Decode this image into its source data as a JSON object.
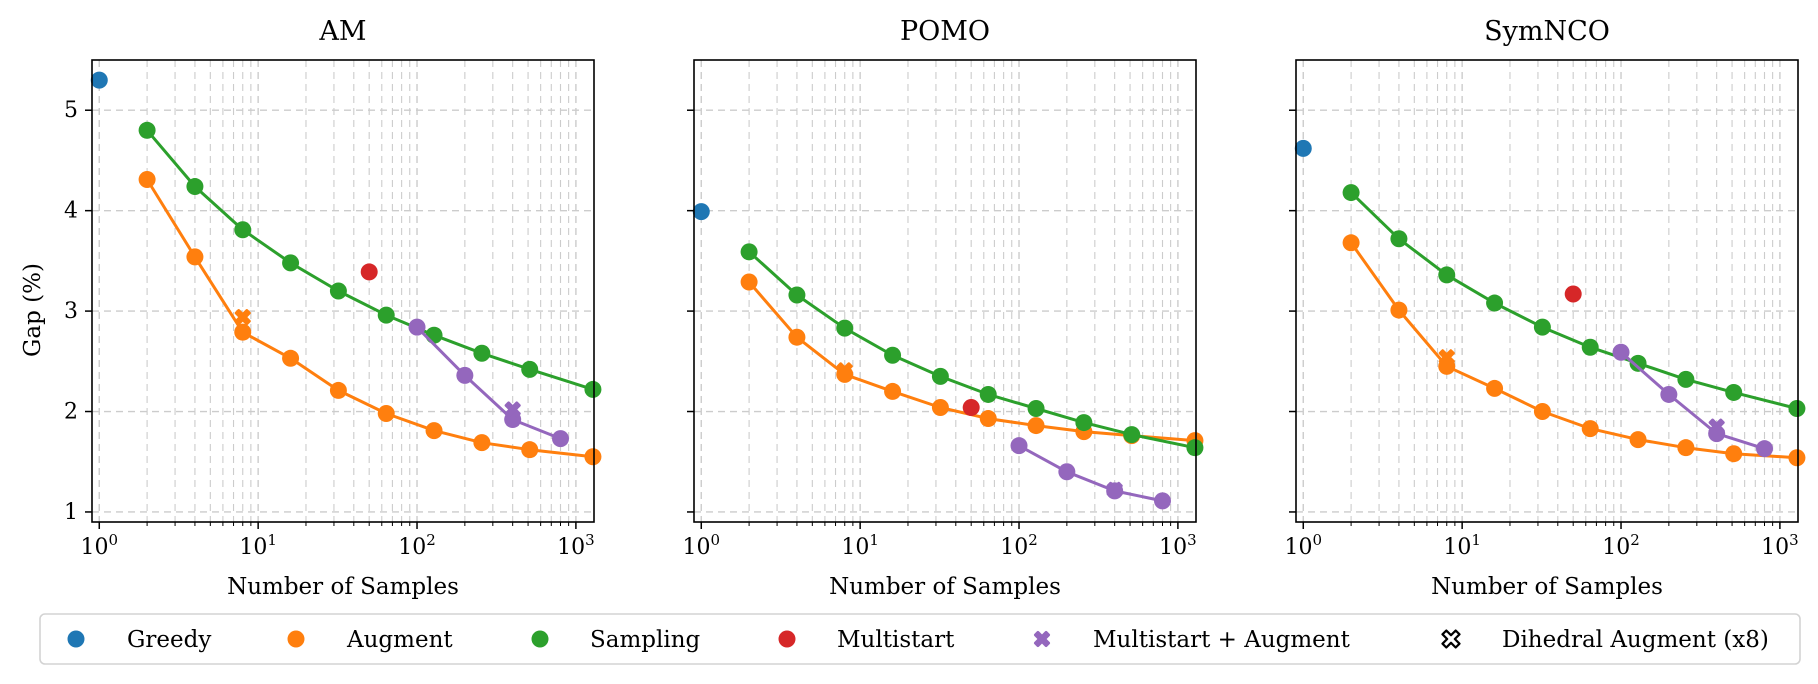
{
  "ylabel": "Gap (%)",
  "legend": {
    "placement": "bottom",
    "items": [
      {
        "label": "Greedy",
        "color": "#1f77b4",
        "marker": "circle"
      },
      {
        "label": "Augment",
        "color": "#ff7f0e",
        "marker": "circle"
      },
      {
        "label": "Sampling",
        "color": "#2ca02c",
        "marker": "circle"
      },
      {
        "label": "Multistart",
        "color": "#d62728",
        "marker": "circle"
      },
      {
        "label": "Multistart + Augment",
        "color": "#9467bd",
        "marker": "x"
      },
      {
        "label": "Dihedral Augment (x8)",
        "color": "#000000",
        "marker": "x-hollow"
      }
    ]
  },
  "chart_data": [
    {
      "type": "line",
      "title": "AM",
      "xlabel": "Number of Samples",
      "ylabel": "Gap (%)",
      "xscale": "log",
      "xlim": [
        0.9,
        1300
      ],
      "ylim": [
        0.9,
        5.5
      ],
      "xticks": [
        {
          "v": 1,
          "m": "10",
          "e": "0"
        },
        {
          "v": 10,
          "m": "10",
          "e": "1"
        },
        {
          "v": 100,
          "m": "10",
          "e": "2"
        },
        {
          "v": 1000,
          "m": "10",
          "e": "3"
        }
      ],
      "yticks": [
        1,
        2,
        3,
        4,
        5
      ],
      "show_ytick_labels": true,
      "grid": true,
      "series": [
        {
          "name": "Greedy",
          "color": "#1f77b4",
          "line": false,
          "x": [
            1
          ],
          "y": [
            5.3
          ]
        },
        {
          "name": "Augment",
          "color": "#ff7f0e",
          "line": true,
          "x": [
            2,
            4,
            8,
            16,
            32,
            64,
            128,
            256,
            512,
            1280
          ],
          "y": [
            4.31,
            3.54,
            2.79,
            2.53,
            2.21,
            1.98,
            1.81,
            1.69,
            1.62,
            1.55
          ]
        },
        {
          "name": "Sampling",
          "color": "#2ca02c",
          "line": true,
          "x": [
            2,
            4,
            8,
            16,
            32,
            64,
            128,
            256,
            512,
            1280
          ],
          "y": [
            4.8,
            4.24,
            3.81,
            3.48,
            3.2,
            2.96,
            2.76,
            2.58,
            2.42,
            2.22
          ]
        },
        {
          "name": "Multistart",
          "color": "#d62728",
          "line": false,
          "x": [
            50
          ],
          "y": [
            3.39
          ]
        },
        {
          "name": "Multistart + Augment",
          "color": "#9467bd",
          "line": true,
          "x": [
            100,
            200,
            400,
            800
          ],
          "y": [
            2.84,
            2.36,
            1.92,
            1.73
          ]
        },
        {
          "name": "Dihedral Augment (x8)",
          "color": "#ff7f0e",
          "line": false,
          "marker": "x",
          "x": [
            8
          ],
          "y": [
            2.94
          ]
        },
        {
          "name": "Dihedral Augment (x8)",
          "color": "#9467bd",
          "line": false,
          "marker": "x",
          "x": [
            400
          ],
          "y": [
            2.02
          ]
        }
      ]
    },
    {
      "type": "line",
      "title": "POMO",
      "xlabel": "Number of Samples",
      "ylabel": "",
      "xscale": "log",
      "xlim": [
        0.9,
        1300
      ],
      "ylim": [
        0.9,
        5.5
      ],
      "xticks": [
        {
          "v": 1,
          "m": "10",
          "e": "0"
        },
        {
          "v": 10,
          "m": "10",
          "e": "1"
        },
        {
          "v": 100,
          "m": "10",
          "e": "2"
        },
        {
          "v": 1000,
          "m": "10",
          "e": "3"
        }
      ],
      "yticks": [
        1,
        2,
        3,
        4,
        5
      ],
      "show_ytick_labels": false,
      "grid": true,
      "series": [
        {
          "name": "Greedy",
          "color": "#1f77b4",
          "line": false,
          "x": [
            1
          ],
          "y": [
            3.99
          ]
        },
        {
          "name": "Augment",
          "color": "#ff7f0e",
          "line": true,
          "x": [
            2,
            4,
            8,
            16,
            32,
            64,
            128,
            256,
            512,
            1280
          ],
          "y": [
            3.29,
            2.74,
            2.37,
            2.2,
            2.04,
            1.93,
            1.86,
            1.8,
            1.76,
            1.71
          ]
        },
        {
          "name": "Sampling",
          "color": "#2ca02c",
          "line": true,
          "x": [
            2,
            4,
            8,
            16,
            32,
            64,
            128,
            256,
            512,
            1280
          ],
          "y": [
            3.59,
            3.16,
            2.83,
            2.56,
            2.35,
            2.17,
            2.03,
            1.89,
            1.77,
            1.64
          ]
        },
        {
          "name": "Multistart",
          "color": "#d62728",
          "line": false,
          "x": [
            50
          ],
          "y": [
            2.04
          ]
        },
        {
          "name": "Multistart + Augment",
          "color": "#9467bd",
          "line": true,
          "x": [
            100,
            200,
            400,
            800
          ],
          "y": [
            1.66,
            1.4,
            1.21,
            1.11
          ]
        },
        {
          "name": "Dihedral Augment (x8)",
          "color": "#ff7f0e",
          "line": false,
          "marker": "x",
          "x": [
            8
          ],
          "y": [
            2.41
          ]
        },
        {
          "name": "Dihedral Augment (x8)",
          "color": "#9467bd",
          "line": false,
          "marker": "x",
          "x": [
            400
          ],
          "y": [
            1.22
          ]
        }
      ]
    },
    {
      "type": "line",
      "title": "SymNCO",
      "xlabel": "Number of Samples",
      "ylabel": "",
      "xscale": "log",
      "xlim": [
        0.9,
        1300
      ],
      "ylim": [
        0.9,
        5.5
      ],
      "xticks": [
        {
          "v": 1,
          "m": "10",
          "e": "0"
        },
        {
          "v": 10,
          "m": "10",
          "e": "1"
        },
        {
          "v": 100,
          "m": "10",
          "e": "2"
        },
        {
          "v": 1000,
          "m": "10",
          "e": "3"
        }
      ],
      "yticks": [
        1,
        2,
        3,
        4,
        5
      ],
      "show_ytick_labels": false,
      "grid": true,
      "series": [
        {
          "name": "Greedy",
          "color": "#1f77b4",
          "line": false,
          "x": [
            1
          ],
          "y": [
            4.62
          ]
        },
        {
          "name": "Augment",
          "color": "#ff7f0e",
          "line": true,
          "x": [
            2,
            4,
            8,
            16,
            32,
            64,
            128,
            256,
            512,
            1280
          ],
          "y": [
            3.68,
            3.01,
            2.45,
            2.23,
            2.0,
            1.83,
            1.72,
            1.64,
            1.58,
            1.54
          ]
        },
        {
          "name": "Sampling",
          "color": "#2ca02c",
          "line": true,
          "x": [
            2,
            4,
            8,
            16,
            32,
            64,
            128,
            256,
            512,
            1280
          ],
          "y": [
            4.18,
            3.72,
            3.36,
            3.08,
            2.84,
            2.64,
            2.48,
            2.32,
            2.19,
            2.03
          ]
        },
        {
          "name": "Multistart",
          "color": "#d62728",
          "line": false,
          "x": [
            50
          ],
          "y": [
            3.17
          ]
        },
        {
          "name": "Multistart + Augment",
          "color": "#9467bd",
          "line": true,
          "x": [
            100,
            200,
            400,
            800
          ],
          "y": [
            2.59,
            2.17,
            1.78,
            1.63
          ]
        },
        {
          "name": "Dihedral Augment (x8)",
          "color": "#ff7f0e",
          "line": false,
          "marker": "x",
          "x": [
            8
          ],
          "y": [
            2.54
          ]
        },
        {
          "name": "Dihedral Augment (x8)",
          "color": "#9467bd",
          "line": false,
          "marker": "x",
          "x": [
            400
          ],
          "y": [
            1.85
          ]
        }
      ]
    }
  ]
}
